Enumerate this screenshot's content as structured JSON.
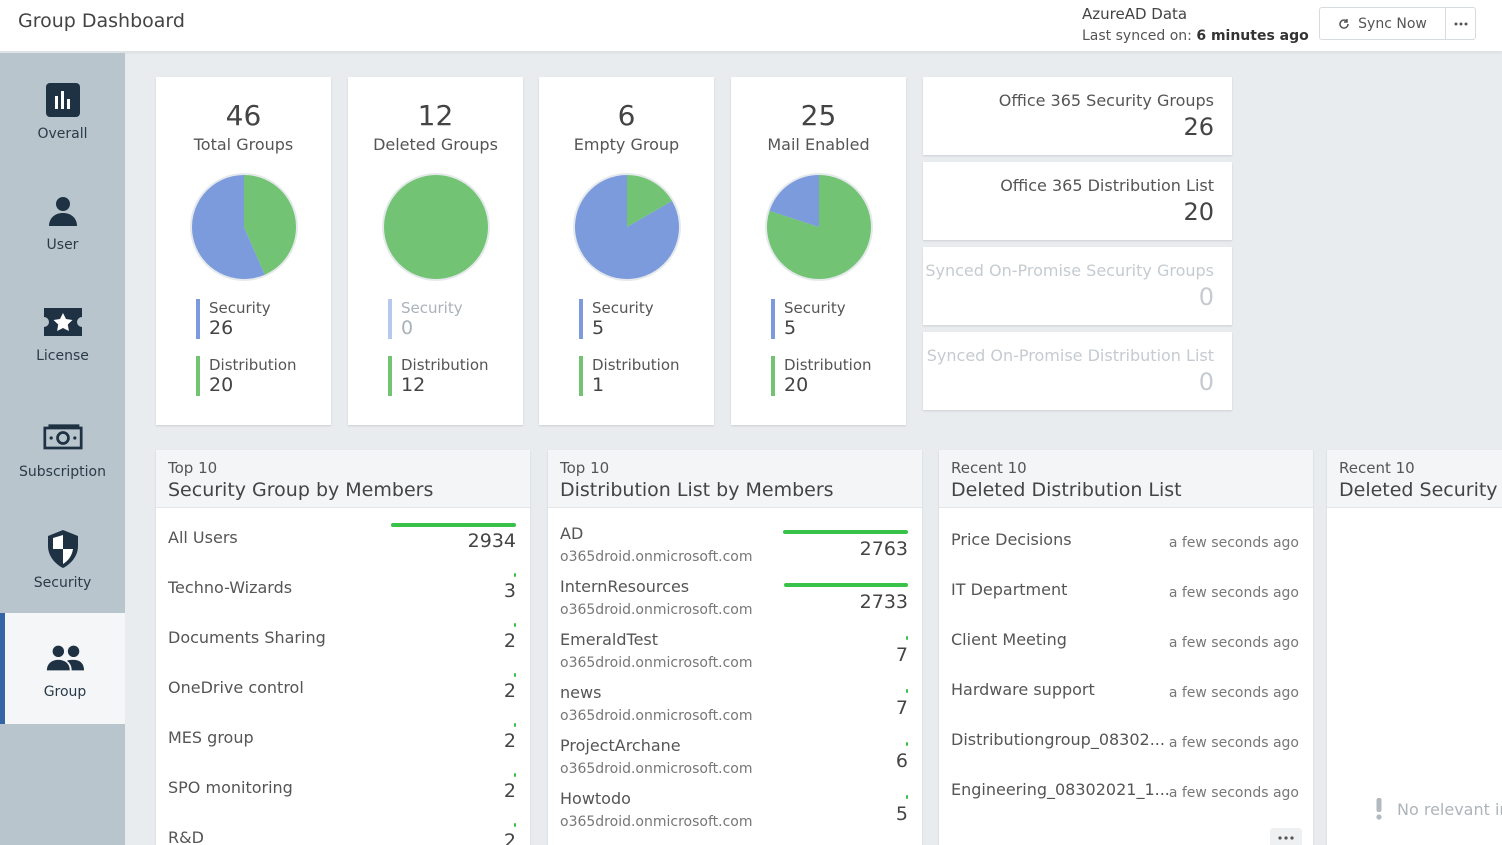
{
  "header": {
    "title": "Group Dashboard",
    "source": "AzureAD Data",
    "synced_label": "Last synced on:",
    "synced_value": "6 minutes ago",
    "sync_button": "Sync Now",
    "more_icon": "ellipsis-icon"
  },
  "sidebar": {
    "items": [
      {
        "label": "Overall",
        "icon": "bar-chart-icon"
      },
      {
        "label": "User",
        "icon": "user-icon"
      },
      {
        "label": "License",
        "icon": "ticket-star-icon"
      },
      {
        "label": "Subscription",
        "icon": "money-bill-icon"
      },
      {
        "label": "Security",
        "icon": "shield-icon"
      },
      {
        "label": "Group",
        "icon": "users-icon"
      }
    ],
    "active": "Group"
  },
  "colors": {
    "security": "#7b9bdc",
    "distribution": "#72c474",
    "active_bar": "#3465a4",
    "bar": "#39c24a"
  },
  "stats": [
    {
      "value": "46",
      "label": "Total Groups",
      "security_label": "Security",
      "security": "26",
      "distribution_label": "Distribution",
      "distribution": "20",
      "security_count": 26,
      "distribution_count": 20
    },
    {
      "value": "12",
      "label": "Deleted Groups",
      "security_label": "Security",
      "security": "0",
      "distribution_label": "Distribution",
      "distribution": "12",
      "security_count": 0,
      "distribution_count": 12
    },
    {
      "value": "6",
      "label": "Empty Group",
      "security_label": "Security",
      "security": "5",
      "distribution_label": "Distribution",
      "distribution": "1",
      "security_count": 5,
      "distribution_count": 1
    },
    {
      "value": "25",
      "label": "Mail Enabled",
      "security_label": "Security",
      "security": "5",
      "distribution_label": "Distribution",
      "distribution": "20",
      "security_count": 5,
      "distribution_count": 20
    }
  ],
  "summary": [
    {
      "label": "Office 365 Security Groups",
      "value": "26"
    },
    {
      "label": "Office 365 Distribution List",
      "value": "20"
    },
    {
      "label": "Synced On-Promise Security Groups",
      "value": "0"
    },
    {
      "label": "Synced On-Promise Distribution List",
      "value": "0"
    }
  ],
  "panels": {
    "security_top": {
      "sub": "Top 10",
      "title": "Security Group by Members",
      "rows": [
        {
          "name": "All Users",
          "count": "2934",
          "fraction": 1.0
        },
        {
          "name": "Techno-Wizards",
          "count": "3",
          "fraction": 0.001
        },
        {
          "name": "Documents Sharing",
          "count": "2",
          "fraction": 0.001
        },
        {
          "name": "OneDrive control",
          "count": "2",
          "fraction": 0.001
        },
        {
          "name": "MES group",
          "count": "2",
          "fraction": 0.001
        },
        {
          "name": "SPO monitoring",
          "count": "2",
          "fraction": 0.001
        },
        {
          "name": "R&D",
          "count": "2",
          "fraction": 0.001
        }
      ]
    },
    "distribution_top": {
      "sub": "Top 10",
      "title": "Distribution List by Members",
      "rows": [
        {
          "name": "AD",
          "domain": "o365droid.onmicrosoft.com",
          "count": "2763",
          "fraction": 1.0
        },
        {
          "name": "InternResources",
          "domain": "o365droid.onmicrosoft.com",
          "count": "2733",
          "fraction": 0.99
        },
        {
          "name": "EmeraldTest",
          "domain": "o365droid.onmicrosoft.com",
          "count": "7",
          "fraction": 0.003
        },
        {
          "name": "news",
          "domain": "o365droid.onmicrosoft.com",
          "count": "7",
          "fraction": 0.003
        },
        {
          "name": "ProjectArchane",
          "domain": "o365droid.onmicrosoft.com",
          "count": "6",
          "fraction": 0.002
        },
        {
          "name": "Howtodo",
          "domain": "o365droid.onmicrosoft.com",
          "count": "5",
          "fraction": 0.002
        }
      ]
    },
    "deleted_dist": {
      "sub": "Recent 10",
      "title": "Deleted Distribution List",
      "rows": [
        {
          "name": "Price Decisions",
          "ago": "a few seconds ago"
        },
        {
          "name": "IT Department",
          "ago": "a few seconds ago"
        },
        {
          "name": "Client Meeting",
          "ago": "a few seconds ago"
        },
        {
          "name": "Hardware support",
          "ago": "a few seconds ago"
        },
        {
          "name": "Distributiongroup_08302...",
          "ago": "a few seconds ago"
        },
        {
          "name": "Engineering_08302021_1...",
          "ago": "a few seconds ago"
        }
      ]
    },
    "deleted_sec": {
      "sub": "Recent 10",
      "title": "Deleted Security G",
      "empty": "No relevant ir"
    }
  }
}
